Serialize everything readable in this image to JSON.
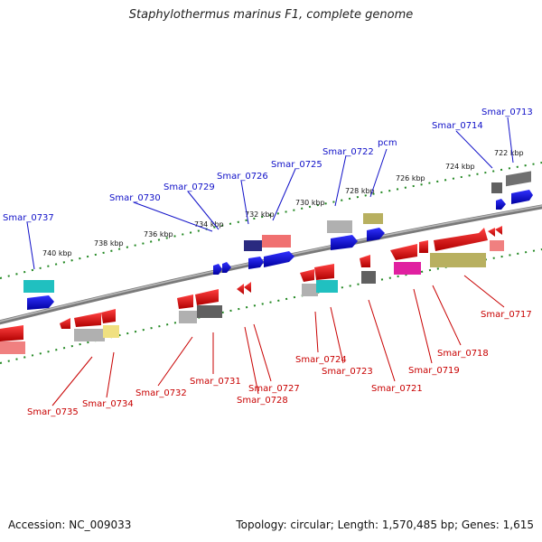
{
  "header": {
    "title": "Staphylothermus marinus F1, complete genome"
  },
  "footer": {
    "accession": "Accession: NC_009033",
    "summary": "Topology: circular; Length: 1,570,485 bp; Genes: 1,615"
  },
  "kbp_ticks": [
    "722 kbp",
    "724 kbp",
    "726 kbp",
    "728 kbp",
    "730 kbp",
    "732 kbp",
    "734 kbp",
    "736 kbp",
    "738 kbp",
    "740 kbp"
  ],
  "genes_top": [
    "Smar_0713",
    "Smar_0714",
    "pcm",
    "Smar_0722",
    "Smar_0725",
    "Smar_0726",
    "Smar_0729",
    "Smar_0730",
    "Smar_0737"
  ],
  "genes_bottom": [
    "Smar_0717",
    "Smar_0718",
    "Smar_0719",
    "Smar_0721",
    "Smar_0723",
    "Smar_0724",
    "Smar_0727",
    "Smar_0728",
    "Smar_0731",
    "Smar_0732",
    "Smar_0734",
    "Smar_0735"
  ],
  "colors": {
    "forward": "#1010c8",
    "reverse": "#c80000",
    "backbone": "#808080",
    "dots": "#228822"
  }
}
